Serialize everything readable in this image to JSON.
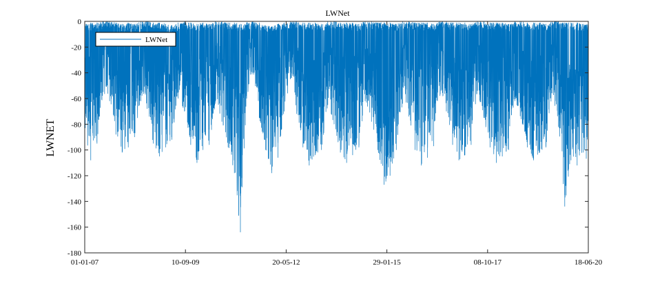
{
  "chart_data": {
    "type": "line",
    "title": "LWNet",
    "xlabel": "",
    "ylabel": "LWNET",
    "xlim": [
      "2007-01-01",
      "2020-06-18"
    ],
    "ylim": [
      -180,
      0
    ],
    "x_ticks": [
      "01-01-07",
      "10-09-09",
      "20-05-12",
      "29-01-15",
      "08-10-17",
      "18-06-20"
    ],
    "y_ticks": [
      0,
      -20,
      -40,
      -60,
      -80,
      -100,
      -120,
      -140,
      -160,
      -180
    ],
    "grid": false,
    "legend_location": "top-left",
    "series": [
      {
        "name": "LWNet",
        "color": "#0072BD",
        "sampling": "approximate monthly lower envelope of dense daily series (upper envelope near 0)",
        "x": [
          "2007-01-01",
          "2007-03-01",
          "2007-05-01",
          "2007-07-01",
          "2007-09-01",
          "2007-11-01",
          "2008-01-01",
          "2008-03-01",
          "2008-05-01",
          "2008-07-01",
          "2008-09-01",
          "2008-11-01",
          "2009-01-01",
          "2009-03-01",
          "2009-05-01",
          "2009-07-01",
          "2009-09-01",
          "2009-11-01",
          "2010-01-01",
          "2010-03-01",
          "2010-05-01",
          "2010-07-01",
          "2010-09-01",
          "2010-11-01",
          "2011-01-01",
          "2011-03-01",
          "2011-05-01",
          "2011-07-01",
          "2011-09-01",
          "2011-11-01",
          "2012-01-01",
          "2012-03-01",
          "2012-05-01",
          "2012-07-01",
          "2012-09-01",
          "2012-11-01",
          "2013-01-01",
          "2013-03-01",
          "2013-05-01",
          "2013-07-01",
          "2013-09-01",
          "2013-11-01",
          "2014-01-01",
          "2014-03-01",
          "2014-05-01",
          "2014-07-01",
          "2014-09-01",
          "2014-11-01",
          "2015-01-01",
          "2015-03-01",
          "2015-05-01",
          "2015-07-01",
          "2015-09-01",
          "2015-11-01",
          "2016-01-01",
          "2016-03-01",
          "2016-05-01",
          "2016-07-01",
          "2016-09-01",
          "2016-11-01",
          "2017-01-01",
          "2017-03-01",
          "2017-05-01",
          "2017-07-01",
          "2017-09-01",
          "2017-11-01",
          "2018-01-01",
          "2018-03-01",
          "2018-05-01",
          "2018-07-01",
          "2018-09-01",
          "2018-11-01",
          "2019-01-01",
          "2019-03-01",
          "2019-05-01",
          "2019-07-01",
          "2019-09-01",
          "2019-11-01",
          "2020-01-01",
          "2020-03-01",
          "2020-05-01",
          "2020-06-18"
        ],
        "y_min": [
          -90,
          -108,
          -95,
          -55,
          -62,
          -88,
          -102,
          -98,
          -90,
          -62,
          -68,
          -95,
          -105,
          -98,
          -92,
          -60,
          -70,
          -96,
          -110,
          -100,
          -96,
          -64,
          -78,
          -98,
          -118,
          -164,
          -60,
          -40,
          -75,
          -100,
          -118,
          -106,
          -70,
          -45,
          -72,
          -98,
          -112,
          -104,
          -100,
          -65,
          -80,
          -102,
          -110,
          -104,
          -98,
          -62,
          -78,
          -100,
          -127,
          -120,
          -100,
          -64,
          -74,
          -100,
          -112,
          -106,
          -97,
          -58,
          -70,
          -96,
          -108,
          -104,
          -96,
          -54,
          -75,
          -98,
          -110,
          -105,
          -100,
          -62,
          -76,
          -98,
          -108,
          -102,
          -98,
          -56,
          -82,
          -144,
          -108,
          -112,
          -102,
          -129
        ],
        "y_max": [
          -2,
          -1,
          -1,
          0,
          0,
          -1,
          -2,
          -1,
          -2,
          0,
          0,
          -1,
          -1,
          -2,
          -3,
          -1,
          0,
          -1,
          -2,
          -1,
          -2,
          0,
          0,
          -1,
          -1,
          -2,
          -1,
          0,
          -1,
          -3,
          -4,
          -2,
          -1,
          0,
          0,
          -1,
          -1,
          -1,
          -2,
          0,
          0,
          -1,
          -1,
          -1,
          -2,
          0,
          0,
          -1,
          -1,
          -1,
          -2,
          0,
          0,
          -1,
          -1,
          -1,
          -2,
          0,
          0,
          -1,
          -1,
          -1,
          -2,
          0,
          0,
          -1,
          -1,
          -1,
          -2,
          0,
          0,
          -1,
          -1,
          -1,
          -2,
          0,
          0,
          -1,
          -1,
          -1,
          -2,
          -1
        ]
      }
    ]
  }
}
